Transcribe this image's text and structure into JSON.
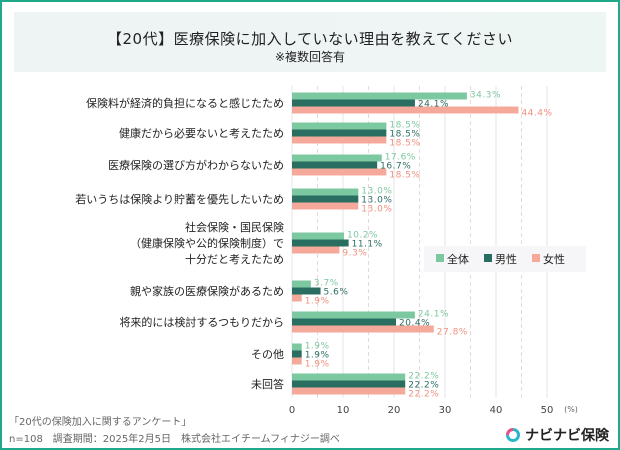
{
  "title": "【20代】医療保険に加入していない理由を教えてください",
  "subtitle": "※複数回答有",
  "footer": {
    "source": "「20代の保険加入に関するアンケート」",
    "note": "n=108　調査期間：2025年2月5日　株式会社エイチームフィナジー調べ"
  },
  "logo": {
    "text": "ナビナビ保険"
  },
  "chart_data": {
    "type": "bar",
    "orientation": "horizontal",
    "categories": [
      "保険料が経済的負担になると感じたため",
      "健康だから必要ないと考えたため",
      "医療保険の選び方がわからないため",
      "若いうちは保険より貯蓄を優先したいため",
      "社会保険・国民保険\n（健康保険や公的保険制度）で\n十分だと考えたため",
      "親や家族の医療保険があるため",
      "将来的には検討するつもりだから",
      "その他",
      "未回答"
    ],
    "series": [
      {
        "name": "全体",
        "color": "#7cc8a0",
        "label_color": "#7cc8a0",
        "values": [
          34.3,
          18.5,
          17.6,
          13.0,
          10.2,
          3.7,
          24.1,
          1.9,
          22.2
        ]
      },
      {
        "name": "男性",
        "color": "#2a6e62",
        "label_color": "#2a6e62",
        "values": [
          24.1,
          18.5,
          16.7,
          13.0,
          11.1,
          5.6,
          20.4,
          1.9,
          22.2
        ]
      },
      {
        "name": "女性",
        "color": "#f4a99b",
        "label_color": "#f0907f",
        "values": [
          44.4,
          18.5,
          18.5,
          13.0,
          9.3,
          1.9,
          27.8,
          1.9,
          22.2
        ]
      }
    ],
    "xlim": [
      0,
      50
    ],
    "xticks": [
      0,
      10,
      20,
      30,
      40,
      50
    ],
    "xunit": "(%)",
    "grid": true,
    "legend": "right"
  }
}
